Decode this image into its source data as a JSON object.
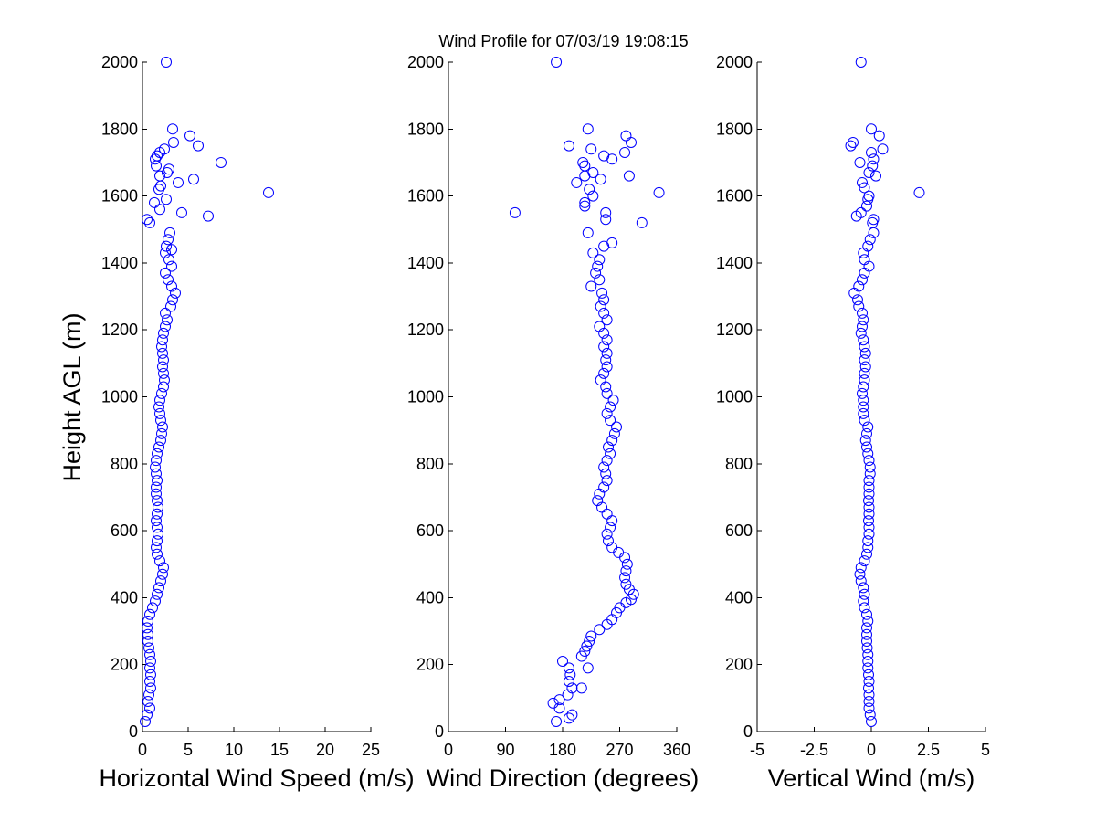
{
  "figure": {
    "title": "Wind Profile for  07/03/19 19:08:15",
    "ylabel": "Height AGL (m)"
  },
  "chart_data": [
    {
      "type": "scatter",
      "id": "speed",
      "xlabel": "Horizontal Wind Speed (m/s)",
      "ylabel": "Height AGL (m)",
      "xlim": [
        0,
        25
      ],
      "ylim": [
        0,
        2000
      ],
      "xticks": [
        0,
        5,
        10,
        15,
        20,
        25
      ],
      "xtick_labels": [
        "0",
        "5",
        "10",
        "15",
        "20",
        "25"
      ],
      "yticks": [
        0,
        200,
        400,
        600,
        800,
        1000,
        1200,
        1400,
        1600,
        1800,
        2000
      ],
      "ytick_labels": [
        "0",
        "200",
        "400",
        "600",
        "800",
        "1000",
        "1200",
        "1400",
        "1600",
        "1800",
        "2000"
      ],
      "points": [
        [
          0.3,
          30
        ],
        [
          0.5,
          50
        ],
        [
          0.8,
          70
        ],
        [
          0.6,
          90
        ],
        [
          0.7,
          110
        ],
        [
          0.9,
          130
        ],
        [
          0.8,
          150
        ],
        [
          0.9,
          170
        ],
        [
          0.8,
          190
        ],
        [
          0.9,
          210
        ],
        [
          0.8,
          230
        ],
        [
          0.7,
          250
        ],
        [
          0.6,
          270
        ],
        [
          0.6,
          290
        ],
        [
          0.5,
          310
        ],
        [
          0.6,
          330
        ],
        [
          0.8,
          350
        ],
        [
          1.1,
          370
        ],
        [
          1.4,
          390
        ],
        [
          1.6,
          410
        ],
        [
          1.8,
          430
        ],
        [
          2.0,
          450
        ],
        [
          2.2,
          470
        ],
        [
          2.3,
          490
        ],
        [
          1.9,
          510
        ],
        [
          1.6,
          530
        ],
        [
          1.5,
          550
        ],
        [
          1.6,
          570
        ],
        [
          1.7,
          590
        ],
        [
          1.6,
          610
        ],
        [
          1.5,
          630
        ],
        [
          1.6,
          650
        ],
        [
          1.7,
          670
        ],
        [
          1.6,
          690
        ],
        [
          1.5,
          710
        ],
        [
          1.5,
          730
        ],
        [
          1.6,
          750
        ],
        [
          1.5,
          770
        ],
        [
          1.4,
          790
        ],
        [
          1.5,
          810
        ],
        [
          1.6,
          830
        ],
        [
          1.8,
          850
        ],
        [
          2.0,
          870
        ],
        [
          2.1,
          890
        ],
        [
          2.2,
          910
        ],
        [
          2.0,
          930
        ],
        [
          1.9,
          950
        ],
        [
          1.8,
          970
        ],
        [
          1.9,
          990
        ],
        [
          2.1,
          1010
        ],
        [
          2.3,
          1030
        ],
        [
          2.4,
          1050
        ],
        [
          2.3,
          1070
        ],
        [
          2.2,
          1090
        ],
        [
          2.3,
          1110
        ],
        [
          2.2,
          1130
        ],
        [
          2.1,
          1150
        ],
        [
          2.2,
          1170
        ],
        [
          2.3,
          1190
        ],
        [
          2.5,
          1210
        ],
        [
          2.7,
          1230
        ],
        [
          2.5,
          1250
        ],
        [
          3.1,
          1270
        ],
        [
          3.3,
          1290
        ],
        [
          3.6,
          1310
        ],
        [
          3.2,
          1330
        ],
        [
          2.8,
          1350
        ],
        [
          2.5,
          1370
        ],
        [
          3.2,
          1390
        ],
        [
          2.9,
          1410
        ],
        [
          2.5,
          1430
        ],
        [
          3.2,
          1440
        ],
        [
          2.6,
          1450
        ],
        [
          2.8,
          1470
        ],
        [
          3.0,
          1490
        ],
        [
          0.8,
          1520
        ],
        [
          0.5,
          1530
        ],
        [
          7.2,
          1540
        ],
        [
          4.3,
          1550
        ],
        [
          1.9,
          1560
        ],
        [
          1.3,
          1580
        ],
        [
          2.6,
          1590
        ],
        [
          13.8,
          1610
        ],
        [
          1.8,
          1620
        ],
        [
          2.0,
          1630
        ],
        [
          3.9,
          1640
        ],
        [
          5.6,
          1650
        ],
        [
          1.9,
          1660
        ],
        [
          2.7,
          1670
        ],
        [
          2.9,
          1680
        ],
        [
          1.5,
          1690
        ],
        [
          8.6,
          1700
        ],
        [
          1.4,
          1710
        ],
        [
          1.6,
          1720
        ],
        [
          1.9,
          1730
        ],
        [
          2.4,
          1740
        ],
        [
          6.1,
          1750
        ],
        [
          3.4,
          1760
        ],
        [
          5.2,
          1780
        ],
        [
          3.3,
          1800
        ],
        [
          2.6,
          2000
        ]
      ]
    },
    {
      "type": "scatter",
      "id": "direction",
      "xlabel": "Wind Direction (degrees)",
      "ylabel": "Height AGL (m)",
      "xlim": [
        0,
        360
      ],
      "ylim": [
        0,
        2000
      ],
      "xticks": [
        0,
        90,
        180,
        270,
        360
      ],
      "xtick_labels": [
        "0",
        "90",
        "180",
        "270",
        "360"
      ],
      "yticks": [
        0,
        200,
        400,
        600,
        800,
        1000,
        1200,
        1400,
        1600,
        1800,
        2000
      ],
      "ytick_labels": [
        "0",
        "200",
        "400",
        "600",
        "800",
        "1000",
        "1200",
        "1400",
        "1600",
        "1800",
        "2000"
      ],
      "points": [
        [
          170,
          30
        ],
        [
          190,
          40
        ],
        [
          195,
          50
        ],
        [
          175,
          70
        ],
        [
          165,
          85
        ],
        [
          175,
          95
        ],
        [
          188,
          110
        ],
        [
          195,
          130
        ],
        [
          190,
          150
        ],
        [
          192,
          170
        ],
        [
          190,
          190
        ],
        [
          210,
          130
        ],
        [
          220,
          190
        ],
        [
          180,
          210
        ],
        [
          210,
          225
        ],
        [
          215,
          240
        ],
        [
          218,
          255
        ],
        [
          222,
          270
        ],
        [
          225,
          285
        ],
        [
          238,
          305
        ],
        [
          250,
          320
        ],
        [
          258,
          335
        ],
        [
          265,
          355
        ],
        [
          270,
          370
        ],
        [
          280,
          385
        ],
        [
          288,
          395
        ],
        [
          292,
          410
        ],
        [
          285,
          425
        ],
        [
          280,
          440
        ],
        [
          278,
          460
        ],
        [
          280,
          480
        ],
        [
          282,
          500
        ],
        [
          278,
          520
        ],
        [
          268,
          535
        ],
        [
          258,
          550
        ],
        [
          252,
          570
        ],
        [
          250,
          590
        ],
        [
          255,
          610
        ],
        [
          258,
          630
        ],
        [
          250,
          650
        ],
        [
          242,
          670
        ],
        [
          235,
          690
        ],
        [
          238,
          710
        ],
        [
          245,
          730
        ],
        [
          250,
          750
        ],
        [
          248,
          770
        ],
        [
          245,
          790
        ],
        [
          250,
          810
        ],
        [
          255,
          830
        ],
        [
          252,
          850
        ],
        [
          258,
          870
        ],
        [
          262,
          890
        ],
        [
          265,
          910
        ],
        [
          255,
          930
        ],
        [
          250,
          950
        ],
        [
          255,
          970
        ],
        [
          260,
          990
        ],
        [
          250,
          1010
        ],
        [
          248,
          1030
        ],
        [
          240,
          1050
        ],
        [
          245,
          1070
        ],
        [
          250,
          1090
        ],
        [
          248,
          1110
        ],
        [
          250,
          1130
        ],
        [
          245,
          1150
        ],
        [
          250,
          1170
        ],
        [
          245,
          1190
        ],
        [
          238,
          1210
        ],
        [
          250,
          1230
        ],
        [
          245,
          1250
        ],
        [
          240,
          1270
        ],
        [
          245,
          1290
        ],
        [
          242,
          1310
        ],
        [
          225,
          1330
        ],
        [
          238,
          1350
        ],
        [
          232,
          1370
        ],
        [
          235,
          1390
        ],
        [
          238,
          1410
        ],
        [
          228,
          1430
        ],
        [
          245,
          1450
        ],
        [
          258,
          1460
        ],
        [
          220,
          1490
        ],
        [
          248,
          1530
        ],
        [
          248,
          1550
        ],
        [
          105,
          1550
        ],
        [
          305,
          1520
        ],
        [
          215,
          1570
        ],
        [
          215,
          1580
        ],
        [
          228,
          1600
        ],
        [
          222,
          1620
        ],
        [
          202,
          1640
        ],
        [
          332,
          1610
        ],
        [
          240,
          1650
        ],
        [
          215,
          1660
        ],
        [
          228,
          1670
        ],
        [
          285,
          1660
        ],
        [
          215,
          1690
        ],
        [
          212,
          1700
        ],
        [
          258,
          1710
        ],
        [
          245,
          1720
        ],
        [
          278,
          1730
        ],
        [
          190,
          1750
        ],
        [
          225,
          1740
        ],
        [
          288,
          1760
        ],
        [
          280,
          1780
        ],
        [
          220,
          1800
        ],
        [
          170,
          2000
        ]
      ]
    },
    {
      "type": "scatter",
      "id": "vertical",
      "xlabel": "Vertical Wind (m/s)",
      "ylabel": "Height AGL (m)",
      "xlim": [
        -5,
        5
      ],
      "ylim": [
        0,
        2000
      ],
      "xticks": [
        -5,
        -2.5,
        0,
        2.5,
        5
      ],
      "xtick_labels": [
        "-5",
        "-2.5",
        "0",
        "2.5",
        "5"
      ],
      "yticks": [
        0,
        200,
        400,
        600,
        800,
        1000,
        1200,
        1400,
        1600,
        1800,
        2000
      ],
      "ytick_labels": [
        "0",
        "200",
        "400",
        "600",
        "800",
        "1000",
        "1200",
        "1400",
        "1600",
        "1800",
        "2000"
      ],
      "points": [
        [
          0.0,
          30
        ],
        [
          -0.05,
          50
        ],
        [
          -0.1,
          70
        ],
        [
          -0.1,
          90
        ],
        [
          -0.1,
          110
        ],
        [
          -0.12,
          130
        ],
        [
          -0.1,
          150
        ],
        [
          -0.12,
          170
        ],
        [
          -0.15,
          190
        ],
        [
          -0.15,
          210
        ],
        [
          -0.15,
          230
        ],
        [
          -0.18,
          250
        ],
        [
          -0.2,
          270
        ],
        [
          -0.2,
          290
        ],
        [
          -0.2,
          310
        ],
        [
          -0.15,
          330
        ],
        [
          -0.2,
          350
        ],
        [
          -0.3,
          370
        ],
        [
          -0.35,
          390
        ],
        [
          -0.3,
          410
        ],
        [
          -0.35,
          430
        ],
        [
          -0.45,
          450
        ],
        [
          -0.5,
          470
        ],
        [
          -0.45,
          490
        ],
        [
          -0.3,
          510
        ],
        [
          -0.2,
          530
        ],
        [
          -0.15,
          550
        ],
        [
          -0.15,
          570
        ],
        [
          -0.1,
          590
        ],
        [
          -0.1,
          610
        ],
        [
          -0.12,
          630
        ],
        [
          -0.1,
          650
        ],
        [
          -0.1,
          670
        ],
        [
          -0.12,
          690
        ],
        [
          -0.1,
          710
        ],
        [
          -0.1,
          730
        ],
        [
          -0.1,
          750
        ],
        [
          -0.05,
          770
        ],
        [
          -0.05,
          790
        ],
        [
          -0.1,
          810
        ],
        [
          -0.15,
          830
        ],
        [
          -0.2,
          850
        ],
        [
          -0.25,
          870
        ],
        [
          -0.2,
          890
        ],
        [
          -0.15,
          910
        ],
        [
          -0.3,
          930
        ],
        [
          -0.35,
          950
        ],
        [
          -0.35,
          970
        ],
        [
          -0.35,
          990
        ],
        [
          -0.4,
          1010
        ],
        [
          -0.35,
          1030
        ],
        [
          -0.3,
          1050
        ],
        [
          -0.3,
          1070
        ],
        [
          -0.25,
          1090
        ],
        [
          -0.3,
          1110
        ],
        [
          -0.25,
          1130
        ],
        [
          -0.3,
          1150
        ],
        [
          -0.35,
          1170
        ],
        [
          -0.45,
          1190
        ],
        [
          -0.4,
          1210
        ],
        [
          -0.35,
          1230
        ],
        [
          -0.4,
          1250
        ],
        [
          -0.55,
          1270
        ],
        [
          -0.6,
          1290
        ],
        [
          -0.75,
          1310
        ],
        [
          -0.55,
          1330
        ],
        [
          -0.4,
          1350
        ],
        [
          -0.3,
          1370
        ],
        [
          -0.1,
          1390
        ],
        [
          -0.3,
          1410
        ],
        [
          -0.35,
          1430
        ],
        [
          -0.15,
          1450
        ],
        [
          -0.05,
          1470
        ],
        [
          0.1,
          1490
        ],
        [
          0.05,
          1520
        ],
        [
          0.1,
          1530
        ],
        [
          -0.65,
          1540
        ],
        [
          -0.45,
          1550
        ],
        [
          -0.2,
          1570
        ],
        [
          -0.15,
          1590
        ],
        [
          -0.1,
          1600
        ],
        [
          2.1,
          1610
        ],
        [
          -0.3,
          1625
        ],
        [
          -0.4,
          1640
        ],
        [
          0.2,
          1660
        ],
        [
          -0.1,
          1670
        ],
        [
          0.05,
          1690
        ],
        [
          -0.5,
          1700
        ],
        [
          0.1,
          1710
        ],
        [
          0.0,
          1730
        ],
        [
          0.5,
          1740
        ],
        [
          -0.9,
          1750
        ],
        [
          -0.8,
          1760
        ],
        [
          0.35,
          1780
        ],
        [
          0.0,
          1800
        ],
        [
          -0.45,
          2000
        ]
      ]
    }
  ]
}
